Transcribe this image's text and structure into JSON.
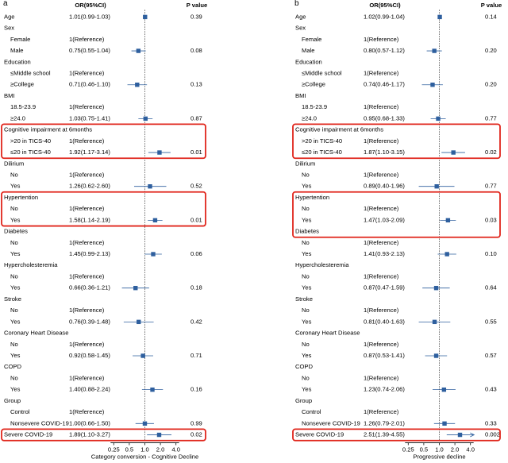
{
  "colors": {
    "marker": "#2e5f9e",
    "highlight": "#e0251b",
    "refline": "#000000",
    "text": "#000000"
  },
  "chart_data": [
    {
      "type": "forest",
      "panel_label": "a",
      "xlabel": "Category conversion - Cognitive Decline",
      "x_ticks": [
        0.25,
        0.5,
        1.0,
        2.0,
        4.0
      ],
      "x_tick_labels": [
        "0.25",
        "0.5",
        "1.0",
        "2.0",
        "4.0"
      ],
      "xlim": [
        0.18,
        5.0
      ],
      "x_scale": "log",
      "header": {
        "or_label": "OR(95%CI)",
        "p_label": "P value"
      },
      "rows": [
        {
          "label": "Age",
          "indent": false,
          "or_text": "1.01(0.99-1.03)",
          "p": "0.39",
          "or": 1.01,
          "lo": 0.99,
          "hi": 1.03
        },
        {
          "label": "Sex",
          "indent": false,
          "or_text": "",
          "p": ""
        },
        {
          "label": "Female",
          "indent": true,
          "or_text": "1(Reference)",
          "p": ""
        },
        {
          "label": "Male",
          "indent": true,
          "or_text": "0.75(0.55-1.04)",
          "p": "0.08",
          "or": 0.75,
          "lo": 0.55,
          "hi": 1.04
        },
        {
          "label": "Education",
          "indent": false,
          "or_text": "",
          "p": ""
        },
        {
          "label": "≤Middle school",
          "indent": true,
          "or_text": "1(Reference)",
          "p": ""
        },
        {
          "label": "≥College",
          "indent": true,
          "or_text": "0.71(0.46-1.10)",
          "p": "0.13",
          "or": 0.71,
          "lo": 0.46,
          "hi": 1.1
        },
        {
          "label": "BMI",
          "indent": false,
          "or_text": "",
          "p": ""
        },
        {
          "label": "18.5-23.9",
          "indent": true,
          "or_text": "1(Reference)",
          "p": ""
        },
        {
          "label": "≥24.0",
          "indent": true,
          "or_text": "1.03(0.75-1.41)",
          "p": "0.87",
          "or": 1.03,
          "lo": 0.75,
          "hi": 1.41
        },
        {
          "label": "Cognitive impairment at 6months",
          "indent": false,
          "or_text": "",
          "p": ""
        },
        {
          "label": ">20 in TICS-40",
          "indent": true,
          "or_text": "1(Reference)",
          "p": ""
        },
        {
          "label": "≤20 in TICS-40",
          "indent": true,
          "or_text": "1.92(1.17-3.14)",
          "p": "0.01",
          "or": 1.92,
          "lo": 1.17,
          "hi": 3.14
        },
        {
          "label": "Dilirium",
          "indent": false,
          "or_text": "",
          "p": ""
        },
        {
          "label": "No",
          "indent": true,
          "or_text": "1(Reference)",
          "p": ""
        },
        {
          "label": "Yes",
          "indent": true,
          "or_text": "1.26(0.62-2.60)",
          "p": "0.52",
          "or": 1.26,
          "lo": 0.62,
          "hi": 2.6
        },
        {
          "label": "Hypertention",
          "indent": false,
          "or_text": "",
          "p": ""
        },
        {
          "label": "No",
          "indent": true,
          "or_text": "1(Reference)",
          "p": ""
        },
        {
          "label": "Yes",
          "indent": true,
          "or_text": "1.58(1.14-2.19)",
          "p": "0.01",
          "or": 1.58,
          "lo": 1.14,
          "hi": 2.19
        },
        {
          "label": "Diabetes",
          "indent": false,
          "or_text": "",
          "p": ""
        },
        {
          "label": "No",
          "indent": true,
          "or_text": "1(Reference)",
          "p": ""
        },
        {
          "label": "Yes",
          "indent": true,
          "or_text": "1.45(0.99-2.13)",
          "p": "0.06",
          "or": 1.45,
          "lo": 0.99,
          "hi": 2.13
        },
        {
          "label": "Hypercholesteremia",
          "indent": false,
          "or_text": "",
          "p": ""
        },
        {
          "label": "No",
          "indent": true,
          "or_text": "1(Reference)",
          "p": ""
        },
        {
          "label": "Yes",
          "indent": true,
          "or_text": "0.66(0.36-1.21)",
          "p": "0.18",
          "or": 0.66,
          "lo": 0.36,
          "hi": 1.21
        },
        {
          "label": "Stroke",
          "indent": false,
          "or_text": "",
          "p": ""
        },
        {
          "label": "No",
          "indent": true,
          "or_text": "1(Reference)",
          "p": ""
        },
        {
          "label": "Yes",
          "indent": true,
          "or_text": "0.76(0.39-1.48)",
          "p": "0.42",
          "or": 0.76,
          "lo": 0.39,
          "hi": 1.48
        },
        {
          "label": "Coronary Heart Disease",
          "indent": false,
          "or_text": "",
          "p": ""
        },
        {
          "label": "No",
          "indent": true,
          "or_text": "1(Reference)",
          "p": ""
        },
        {
          "label": "Yes",
          "indent": true,
          "or_text": "0.92(0.58-1.45)",
          "p": "0.71",
          "or": 0.92,
          "lo": 0.58,
          "hi": 1.45
        },
        {
          "label": "COPD",
          "indent": false,
          "or_text": "",
          "p": ""
        },
        {
          "label": "No",
          "indent": true,
          "or_text": "1(Reference)",
          "p": ""
        },
        {
          "label": "Yes",
          "indent": true,
          "or_text": "1.40(0.88-2.24)",
          "p": "0.16",
          "or": 1.4,
          "lo": 0.88,
          "hi": 2.24
        },
        {
          "label": "Group",
          "indent": false,
          "or_text": "",
          "p": ""
        },
        {
          "label": "Control",
          "indent": true,
          "or_text": "1(Reference)",
          "p": ""
        },
        {
          "label": "Nonsevere COVID-19",
          "indent": true,
          "or_text": "1.00(0.66-1.50)",
          "p": "0.99",
          "or": 1.0,
          "lo": 0.66,
          "hi": 1.5
        },
        {
          "label": "Severe COVID-19",
          "indent": false,
          "or_text": "1.89(1.10-3.27)",
          "p": "0.02",
          "or": 1.89,
          "lo": 1.1,
          "hi": 3.27
        }
      ],
      "highlight_groups": [
        [
          10,
          12
        ],
        [
          16,
          18
        ],
        [
          37,
          37
        ]
      ]
    },
    {
      "type": "forest",
      "panel_label": "b",
      "xlabel": "Progressive decline",
      "x_ticks": [
        0.25,
        0.5,
        1.0,
        2.0,
        4.0
      ],
      "x_tick_labels": [
        "0.25",
        "0.5",
        "1.0",
        "2.0",
        "4.0"
      ],
      "xlim": [
        0.18,
        5.0
      ],
      "x_scale": "log",
      "header": {
        "or_label": "OR(95%CI)",
        "p_label": "P value"
      },
      "rows": [
        {
          "label": "Age",
          "indent": false,
          "or_text": "1.02(0.99-1.04)",
          "p": "0.14",
          "or": 1.02,
          "lo": 0.99,
          "hi": 1.04
        },
        {
          "label": "Sex",
          "indent": false,
          "or_text": "",
          "p": ""
        },
        {
          "label": "Female",
          "indent": true,
          "or_text": "1(Reference)",
          "p": ""
        },
        {
          "label": "Male",
          "indent": true,
          "or_text": "0.80(0.57-1.12)",
          "p": "0.20",
          "or": 0.8,
          "lo": 0.57,
          "hi": 1.12
        },
        {
          "label": "Education",
          "indent": false,
          "or_text": "",
          "p": ""
        },
        {
          "label": "≤Middle school",
          "indent": true,
          "or_text": "1(Reference)",
          "p": ""
        },
        {
          "label": "≥College",
          "indent": true,
          "or_text": "0.74(0.46-1.17)",
          "p": "0.20",
          "or": 0.74,
          "lo": 0.46,
          "hi": 1.17
        },
        {
          "label": "BMI",
          "indent": false,
          "or_text": "",
          "p": ""
        },
        {
          "label": "18.5-23.9",
          "indent": true,
          "or_text": "1(Reference)",
          "p": ""
        },
        {
          "label": "≥24.0",
          "indent": true,
          "or_text": "0.95(0.68-1.33)",
          "p": "0.77",
          "or": 0.95,
          "lo": 0.68,
          "hi": 1.33
        },
        {
          "label": "Cognitive impairment at 6months",
          "indent": false,
          "or_text": "",
          "p": ""
        },
        {
          "label": ">20 in TICS-40",
          "indent": true,
          "or_text": "1(Reference)",
          "p": ""
        },
        {
          "label": "≤20 in TICS-40",
          "indent": true,
          "or_text": "1.87(1.10-3.15)",
          "p": "0.02",
          "or": 1.87,
          "lo": 1.1,
          "hi": 3.15
        },
        {
          "label": "Dilirium",
          "indent": false,
          "or_text": "",
          "p": ""
        },
        {
          "label": "No",
          "indent": true,
          "or_text": "1(Reference)",
          "p": ""
        },
        {
          "label": "Yes",
          "indent": true,
          "or_text": "0.89(0.40-1.96)",
          "p": "0.77",
          "or": 0.89,
          "lo": 0.4,
          "hi": 1.96
        },
        {
          "label": "Hypertention",
          "indent": false,
          "or_text": "",
          "p": ""
        },
        {
          "label": "No",
          "indent": true,
          "or_text": "1(Reference)",
          "p": ""
        },
        {
          "label": "Yes",
          "indent": true,
          "or_text": "1.47(1.03-2.09)",
          "p": "0.03",
          "or": 1.47,
          "lo": 1.03,
          "hi": 2.09
        },
        {
          "label": "Diabetes",
          "indent": false,
          "or_text": "",
          "p": ""
        },
        {
          "label": "No",
          "indent": true,
          "or_text": "1(Reference)",
          "p": ""
        },
        {
          "label": "Yes",
          "indent": true,
          "or_text": "1.41(0.93-2.13)",
          "p": "0.10",
          "or": 1.41,
          "lo": 0.93,
          "hi": 2.13
        },
        {
          "label": "Hypercholesteremia",
          "indent": false,
          "or_text": "",
          "p": ""
        },
        {
          "label": "No",
          "indent": true,
          "or_text": "1(Reference)",
          "p": ""
        },
        {
          "label": "Yes",
          "indent": true,
          "or_text": "0.87(0.47-1.59)",
          "p": "0.64",
          "or": 0.87,
          "lo": 0.47,
          "hi": 1.59
        },
        {
          "label": "Stroke",
          "indent": false,
          "or_text": "",
          "p": ""
        },
        {
          "label": "No",
          "indent": true,
          "or_text": "1(Reference)",
          "p": ""
        },
        {
          "label": "Yes",
          "indent": true,
          "or_text": "0.81(0.40-1.63)",
          "p": "0.55",
          "or": 0.81,
          "lo": 0.4,
          "hi": 1.63
        },
        {
          "label": "Coronary Heart Disease",
          "indent": false,
          "or_text": "",
          "p": ""
        },
        {
          "label": "No",
          "indent": true,
          "or_text": "1(Reference)",
          "p": ""
        },
        {
          "label": "Yes",
          "indent": true,
          "or_text": "0.87(0.53-1.41)",
          "p": "0.57",
          "or": 0.87,
          "lo": 0.53,
          "hi": 1.41
        },
        {
          "label": "COPD",
          "indent": false,
          "or_text": "",
          "p": ""
        },
        {
          "label": "No",
          "indent": true,
          "or_text": "1(Reference)",
          "p": ""
        },
        {
          "label": "Yes",
          "indent": true,
          "or_text": "1.23(0.74-2.06)",
          "p": "0.43",
          "or": 1.23,
          "lo": 0.74,
          "hi": 2.06
        },
        {
          "label": "Group",
          "indent": false,
          "or_text": "",
          "p": ""
        },
        {
          "label": "Control",
          "indent": true,
          "or_text": "1(Reference)",
          "p": ""
        },
        {
          "label": "Nonsevere COVID-19",
          "indent": true,
          "or_text": "1.26(0.79-2.01)",
          "p": "0.33",
          "or": 1.26,
          "lo": 0.79,
          "hi": 2.01
        },
        {
          "label": "Severe COVID-19",
          "indent": false,
          "or_text": "2.51(1.39-4.55)",
          "p": "0.002",
          "or": 2.51,
          "lo": 1.39,
          "hi": 4.55,
          "arrow": true
        }
      ],
      "highlight_groups": [
        [
          10,
          12
        ],
        [
          16,
          19
        ],
        [
          37,
          37
        ]
      ]
    }
  ]
}
